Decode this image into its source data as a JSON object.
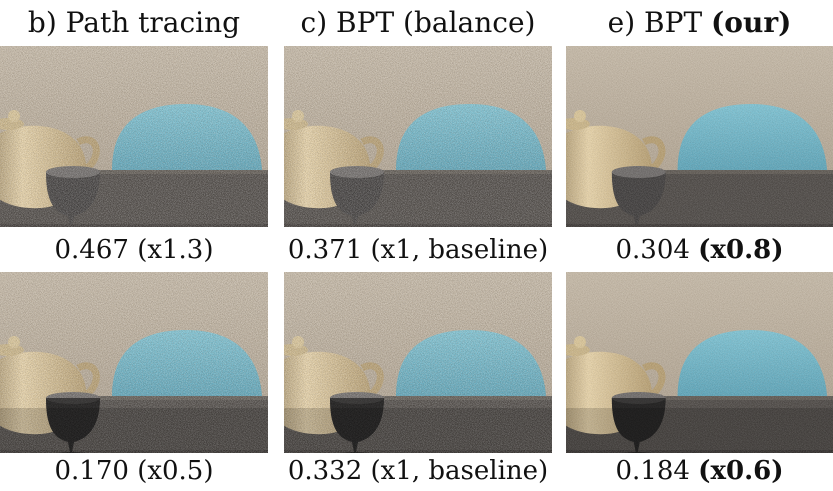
{
  "columns": [
    {
      "prefix": "b) Path tracing",
      "bold": ""
    },
    {
      "prefix": "c) BPT (balance)",
      "bold": ""
    },
    {
      "prefix": "e) BPT ",
      "bold": "(our)"
    }
  ],
  "rows": [
    {
      "captions": [
        {
          "text": "0.467 (x1.3)",
          "bold": ""
        },
        {
          "text": "0.371 (x1, baseline)",
          "bold": ""
        },
        {
          "text": "0.304 ",
          "bold": "(x0.8)"
        }
      ]
    },
    {
      "captions": [
        {
          "text": "0.170 (x0.5)",
          "bold": ""
        },
        {
          "text": "0.332 (x1, baseline)",
          "bold": ""
        },
        {
          "text": "0.184 ",
          "bold": "(x0.6)"
        }
      ]
    }
  ],
  "colors": {
    "wall": "#b8ab99",
    "floor": "#4a4643",
    "dome": "#6fb6c9",
    "teapot": "#d9c49c",
    "cup": "#3c3a3a"
  }
}
